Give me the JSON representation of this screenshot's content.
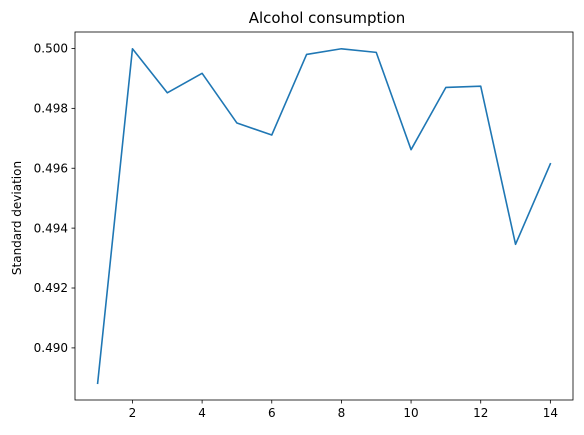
{
  "chart_data": {
    "type": "line",
    "title": "Alcohol consumption",
    "xlabel": "",
    "ylabel": "Standard deviation",
    "x": [
      1,
      2,
      3,
      4,
      5,
      6,
      7,
      8,
      9,
      10,
      11,
      12,
      13,
      14
    ],
    "series": [
      {
        "values": [
          0.48882,
          0.49999,
          0.49852,
          0.49917,
          0.49751,
          0.49711,
          0.4998,
          0.49999,
          0.49987,
          0.49662,
          0.4987,
          0.49874,
          0.49346,
          0.49615
        ]
      }
    ],
    "xlim": [
      0.35,
      14.65
    ],
    "ylim": [
      0.48826,
      0.50055
    ],
    "xticks": [
      2,
      4,
      6,
      8,
      10,
      12,
      14
    ],
    "xtick_labels": [
      "2",
      "4",
      "6",
      "8",
      "10",
      "12",
      "14"
    ],
    "yticks": [
      0.49,
      0.492,
      0.494,
      0.496,
      0.498,
      0.5
    ],
    "ytick_labels": [
      "0.490",
      "0.492",
      "0.494",
      "0.496",
      "0.498",
      "0.500"
    ],
    "grid": false,
    "line_color": "#1f77b4"
  }
}
